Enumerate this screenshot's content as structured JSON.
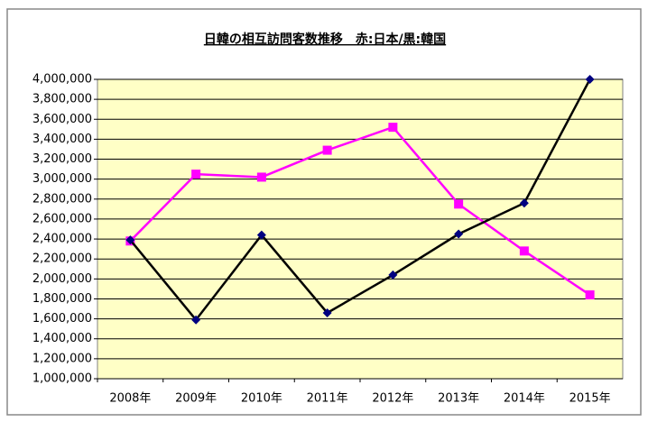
{
  "chart_data": {
    "type": "line",
    "title": "日韓の相互訪問客数推移　赤:日本/黒:韓国",
    "categories": [
      "2008年",
      "2009年",
      "2010年",
      "2011年",
      "2012年",
      "2013年",
      "2014年",
      "2015年"
    ],
    "series": [
      {
        "color": "#ff00ff",
        "marker": "square",
        "marker_color": "#ff00ff",
        "values": [
          2380000,
          3050000,
          3020000,
          3290000,
          3520000,
          2750000,
          2280000,
          1840000
        ]
      },
      {
        "color": "#000000",
        "marker": "diamond",
        "marker_color": "#000080",
        "values": [
          2390000,
          1590000,
          2440000,
          1660000,
          2040000,
          2450000,
          2760000,
          4000000
        ]
      }
    ],
    "ylim": [
      1000000,
      4000000
    ],
    "yticks": [
      {
        "value": 1000000,
        "label": "1,000,000"
      },
      {
        "value": 1200000,
        "label": "1,200,000"
      },
      {
        "value": 1400000,
        "label": "1,400,000"
      },
      {
        "value": 1600000,
        "label": "1,600,000"
      },
      {
        "value": 1800000,
        "label": "1,800,000"
      },
      {
        "value": 2000000,
        "label": "2,000,000"
      },
      {
        "value": 2200000,
        "label": "2,200,000"
      },
      {
        "value": 2400000,
        "label": "2,400,000"
      },
      {
        "value": 2600000,
        "label": "2,600,000"
      },
      {
        "value": 2800000,
        "label": "2,800,000"
      },
      {
        "value": 3000000,
        "label": "3,000,000"
      },
      {
        "value": 3200000,
        "label": "3,200,000"
      },
      {
        "value": 3400000,
        "label": "3,400,000"
      },
      {
        "value": 3600000,
        "label": "3,600,000"
      },
      {
        "value": 3800000,
        "label": "3,800,000"
      },
      {
        "value": 4000000,
        "label": "4,000,000"
      }
    ],
    "grid": true
  }
}
